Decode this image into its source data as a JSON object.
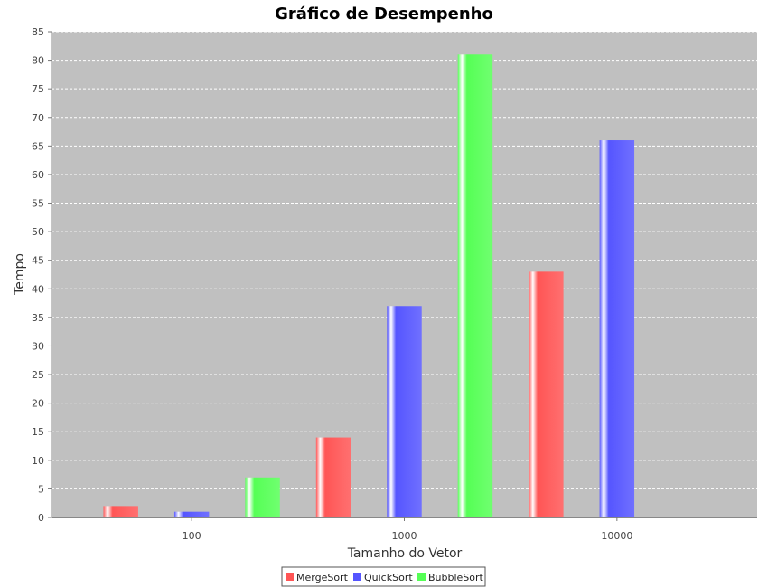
{
  "chart_data": {
    "type": "bar",
    "title": "Gráfico de Desempenho",
    "xlabel": "Tamanho do Vetor",
    "ylabel": "Tempo",
    "categories": [
      "100",
      "1000",
      "10000"
    ],
    "series": [
      {
        "name": "MergeSort",
        "color": "#ff5555",
        "values": [
          2,
          14,
          43
        ]
      },
      {
        "name": "QuickSort",
        "color": "#5555ff",
        "values": [
          1,
          37,
          66
        ]
      },
      {
        "name": "BubbleSort",
        "color": "#55ff55",
        "values": [
          7,
          81,
          null
        ]
      }
    ],
    "ylim": [
      0,
      85
    ],
    "yticks": [
      0,
      5,
      10,
      15,
      20,
      25,
      30,
      35,
      40,
      45,
      50,
      55,
      60,
      65,
      70,
      75,
      80,
      85
    ],
    "grid": true,
    "legend_position": "bottom-center",
    "plot_background": "#c0c0c0"
  }
}
